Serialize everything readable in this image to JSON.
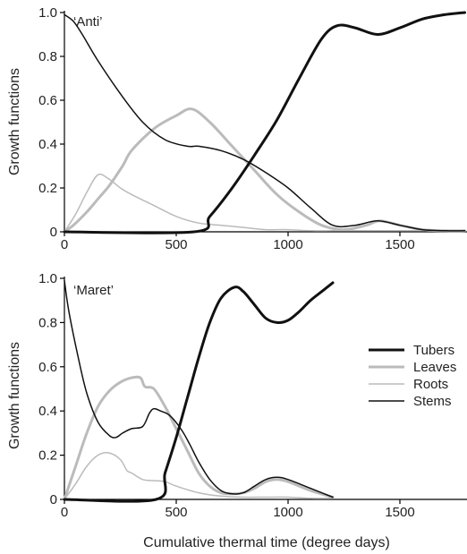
{
  "chart_data": [
    {
      "type": "line",
      "panel_label": "‘Anti’",
      "xlabel": "",
      "ylabel": "Growth functions",
      "xlim": [
        0,
        1800
      ],
      "ylim": [
        0,
        1.0
      ],
      "xticks": [
        0,
        500,
        1000,
        1500
      ],
      "yticks": [
        0,
        0.2,
        0.4,
        0.6,
        0.8,
        1.0
      ],
      "ytick_labels": [
        "0",
        "0.2",
        "0.4",
        "0.6",
        "0.8",
        "1.0"
      ],
      "series": [
        {
          "name": "Tubers",
          "color": "#111111",
          "width": 3,
          "x": [
            0,
            580,
            650,
            750,
            850,
            950,
            1050,
            1150,
            1220,
            1300,
            1400,
            1500,
            1600,
            1700,
            1790
          ],
          "y": [
            0,
            0,
            0.07,
            0.2,
            0.35,
            0.51,
            0.7,
            0.88,
            0.94,
            0.93,
            0.9,
            0.93,
            0.97,
            0.99,
            1.0
          ]
        },
        {
          "name": "Leaves",
          "color": "#bbbbbb",
          "width": 3,
          "x": [
            0,
            40,
            100,
            150,
            200,
            260,
            300,
            400,
            500,
            570,
            650,
            750,
            850,
            950,
            1050,
            1150,
            1250,
            1350,
            1410,
            1500,
            1600,
            1700,
            1790
          ],
          "y": [
            0,
            0.03,
            0.09,
            0.15,
            0.21,
            0.3,
            0.37,
            0.47,
            0.53,
            0.56,
            0.5,
            0.39,
            0.28,
            0.17,
            0.09,
            0.03,
            0.01,
            0.03,
            0.05,
            0.03,
            0.01,
            0.005,
            0.005
          ]
        },
        {
          "name": "Roots",
          "color": "#bbbbbb",
          "width": 1.5,
          "x": [
            0,
            50,
            100,
            150,
            200,
            250,
            300,
            400,
            500,
            600,
            700,
            800,
            900,
            1000,
            1100,
            1200,
            1300,
            1400,
            1500,
            1600,
            1700,
            1790
          ],
          "y": [
            0,
            0.08,
            0.18,
            0.26,
            0.24,
            0.2,
            0.17,
            0.12,
            0.07,
            0.04,
            0.03,
            0.02,
            0.01,
            0.01,
            0.005,
            0.005,
            0.005,
            0.005,
            0.005,
            0.005,
            0.005,
            0.005
          ]
        },
        {
          "name": "Stems",
          "color": "#111111",
          "width": 1.5,
          "x": [
            0,
            40,
            80,
            150,
            250,
            350,
            450,
            550,
            600,
            700,
            800,
            900,
            1000,
            1100,
            1200,
            1300,
            1400,
            1500,
            1600,
            1700,
            1790
          ],
          "y": [
            0.99,
            0.96,
            0.9,
            0.78,
            0.63,
            0.5,
            0.42,
            0.39,
            0.39,
            0.37,
            0.33,
            0.27,
            0.2,
            0.11,
            0.03,
            0.03,
            0.05,
            0.03,
            0.01,
            0.005,
            0.005
          ]
        }
      ]
    },
    {
      "type": "line",
      "panel_label": "‘Maret’",
      "xlabel": "Cumulative thermal time (degree days)",
      "ylabel": "Growth functions",
      "xlim": [
        0,
        1800
      ],
      "ylim": [
        0,
        1.0
      ],
      "xticks": [
        0,
        500,
        1000,
        1500
      ],
      "yticks": [
        0,
        0.2,
        0.4,
        0.6,
        0.8,
        1.0
      ],
      "ytick_labels": [
        "0",
        "0.2",
        "0.4",
        "0.6",
        "0.8",
        "1.0"
      ],
      "series": [
        {
          "name": "Tubers",
          "color": "#111111",
          "width": 3,
          "x": [
            0,
            410,
            450,
            500,
            550,
            600,
            650,
            700,
            760,
            800,
            850,
            900,
            950,
            1000,
            1050,
            1100,
            1150,
            1200
          ],
          "y": [
            0,
            0,
            0.12,
            0.28,
            0.46,
            0.64,
            0.8,
            0.91,
            0.96,
            0.94,
            0.88,
            0.82,
            0.8,
            0.81,
            0.85,
            0.9,
            0.94,
            0.98
          ]
        },
        {
          "name": "Leaves",
          "color": "#bbbbbb",
          "width": 3,
          "x": [
            0,
            50,
            100,
            150,
            200,
            250,
            300,
            340,
            360,
            400,
            450,
            500,
            550,
            600,
            650,
            700,
            750,
            800,
            850,
            900,
            950,
            1000,
            1100,
            1200
          ],
          "y": [
            0,
            0.15,
            0.3,
            0.42,
            0.49,
            0.53,
            0.55,
            0.55,
            0.51,
            0.5,
            0.42,
            0.32,
            0.22,
            0.12,
            0.06,
            0.03,
            0.025,
            0.03,
            0.05,
            0.08,
            0.09,
            0.08,
            0.04,
            0.01
          ]
        },
        {
          "name": "Roots",
          "color": "#bbbbbb",
          "width": 1.5,
          "x": [
            0,
            50,
            100,
            150,
            200,
            250,
            280,
            300,
            350,
            400,
            450,
            500,
            600,
            700,
            800,
            900,
            1000,
            1100,
            1200
          ],
          "y": [
            0,
            0.07,
            0.15,
            0.2,
            0.21,
            0.18,
            0.13,
            0.12,
            0.09,
            0.085,
            0.08,
            0.06,
            0.03,
            0.015,
            0.01,
            0.01,
            0.01,
            0.005,
            0.005
          ]
        },
        {
          "name": "Stems",
          "color": "#111111",
          "width": 1.5,
          "x": [
            0,
            20,
            60,
            100,
            150,
            200,
            230,
            260,
            300,
            350,
            380,
            400,
            430,
            470,
            520,
            560,
            600,
            650,
            700,
            750,
            800,
            850,
            900,
            950,
            1000,
            1100,
            1200
          ],
          "y": [
            0.99,
            0.85,
            0.65,
            0.48,
            0.35,
            0.29,
            0.28,
            0.3,
            0.32,
            0.33,
            0.39,
            0.41,
            0.4,
            0.38,
            0.32,
            0.25,
            0.17,
            0.09,
            0.04,
            0.025,
            0.03,
            0.06,
            0.09,
            0.1,
            0.09,
            0.05,
            0.01
          ]
        }
      ]
    }
  ],
  "legend": [
    {
      "label": "Tubers",
      "color": "#111111",
      "width": 3
    },
    {
      "label": "Leaves",
      "color": "#bbbbbb",
      "width": 3
    },
    {
      "label": "Roots",
      "color": "#bbbbbb",
      "width": 1.5
    },
    {
      "label": "Stems",
      "color": "#111111",
      "width": 1.5
    }
  ]
}
